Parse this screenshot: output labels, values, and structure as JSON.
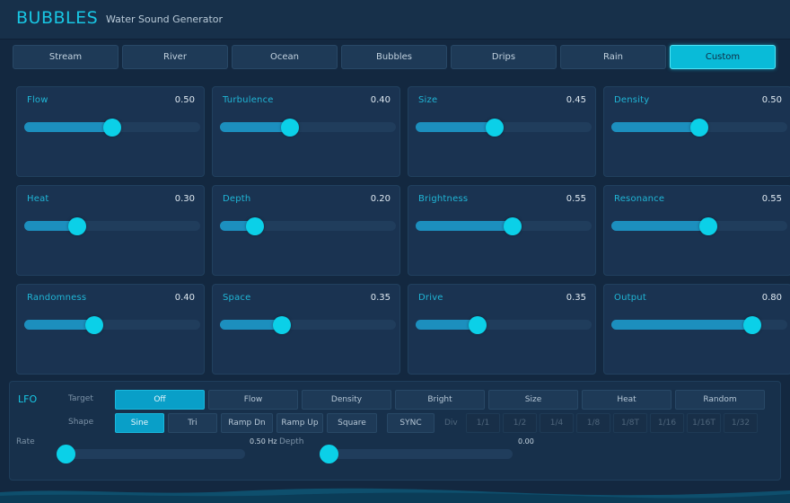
{
  "app": {
    "title": "BUBBLES",
    "subtitle": "Water Sound Generator",
    "accent_color": "#18c6e3"
  },
  "presets": [
    {
      "label": "Stream",
      "active": false
    },
    {
      "label": "River",
      "active": false
    },
    {
      "label": "Ocean",
      "active": false
    },
    {
      "label": "Bubbles",
      "active": false
    },
    {
      "label": "Drips",
      "active": false
    },
    {
      "label": "Rain",
      "active": false
    },
    {
      "label": "Custom",
      "active": true
    }
  ],
  "parameters": [
    {
      "label": "Flow",
      "value": 0.5,
      "display": "0.50"
    },
    {
      "label": "Turbulence",
      "value": 0.4,
      "display": "0.40"
    },
    {
      "label": "Size",
      "value": 0.45,
      "display": "0.45"
    },
    {
      "label": "Density",
      "value": 0.5,
      "display": "0.50"
    },
    {
      "label": "Heat",
      "value": 0.3,
      "display": "0.30"
    },
    {
      "label": "Depth",
      "value": 0.2,
      "display": "0.20"
    },
    {
      "label": "Brightness",
      "value": 0.55,
      "display": "0.55"
    },
    {
      "label": "Resonance",
      "value": 0.55,
      "display": "0.55"
    },
    {
      "label": "Randomness",
      "value": 0.4,
      "display": "0.40"
    },
    {
      "label": "Space",
      "value": 0.35,
      "display": "0.35"
    },
    {
      "label": "Drive",
      "value": 0.35,
      "display": "0.35"
    },
    {
      "label": "Output",
      "value": 0.8,
      "display": "0.80"
    }
  ],
  "lfo": {
    "title": "LFO",
    "target_label": "Target",
    "targets": [
      {
        "label": "Off",
        "active": true
      },
      {
        "label": "Flow",
        "active": false
      },
      {
        "label": "Density",
        "active": false
      },
      {
        "label": "Bright",
        "active": false
      },
      {
        "label": "Size",
        "active": false
      },
      {
        "label": "Heat",
        "active": false
      },
      {
        "label": "Random",
        "active": false
      }
    ],
    "shape_label": "Shape",
    "shapes": [
      {
        "label": "Sine",
        "active": true
      },
      {
        "label": "Tri",
        "active": false
      },
      {
        "label": "Ramp Dn",
        "active": false
      },
      {
        "label": "Ramp Up",
        "active": false
      },
      {
        "label": "Square",
        "active": false
      }
    ],
    "sync_label": "SYNC",
    "div_label": "Div",
    "divisions": [
      "1/1",
      "1/2",
      "1/4",
      "1/8",
      "1/8T",
      "1/16",
      "1/16T",
      "1/32"
    ],
    "rate_label": "Rate",
    "rate_display": "0.50 Hz",
    "rate_value": 0.0,
    "depth_label": "Depth",
    "depth_display": "0.00",
    "depth_value": 0.0
  }
}
